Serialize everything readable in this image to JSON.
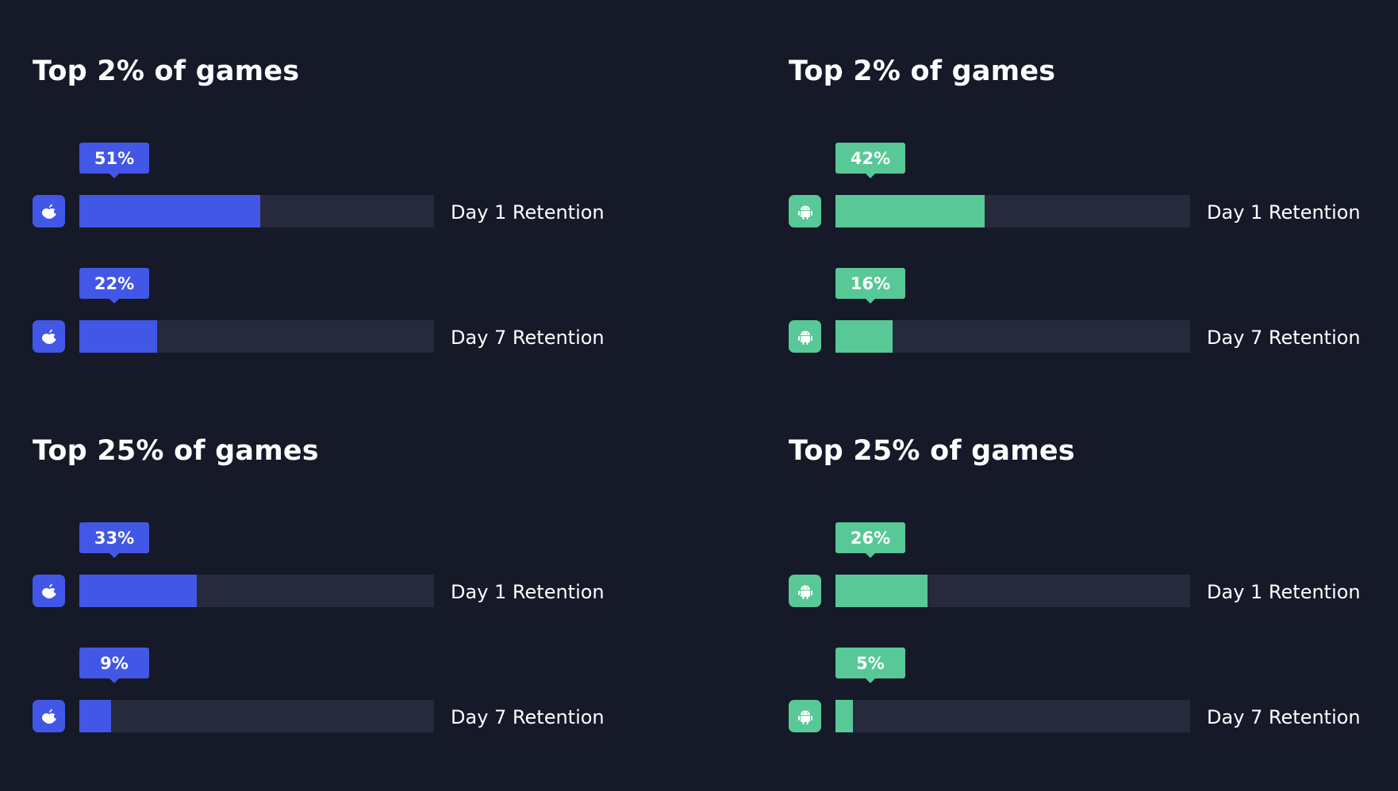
{
  "colors": {
    "background": "#151928",
    "ios": "#4257e6",
    "android": "#58c897",
    "track": "#272a3c"
  },
  "chart_data": [
    {
      "type": "bar",
      "title": "Top 2% of games",
      "platform_icon": "apple-icon",
      "categories": [
        "Day 1 Retention",
        "Day 7 Retention"
      ],
      "values": [
        51,
        22
      ],
      "labels": [
        "51%",
        "22%"
      ],
      "ylim": [
        0,
        100
      ]
    },
    {
      "type": "bar",
      "title": "Top 2% of games",
      "platform_icon": "android-icon",
      "categories": [
        "Day 1 Retention",
        "Day 7 Retention"
      ],
      "values": [
        42,
        16
      ],
      "labels": [
        "42%",
        "16%"
      ],
      "ylim": [
        0,
        100
      ]
    },
    {
      "type": "bar",
      "title": "Top 25% of games",
      "platform_icon": "apple-icon",
      "categories": [
        "Day 1 Retention",
        "Day 7 Retention"
      ],
      "values": [
        33,
        9
      ],
      "labels": [
        "33%",
        "9%"
      ],
      "ylim": [
        0,
        100
      ]
    },
    {
      "type": "bar",
      "title": "Top 25% of games",
      "platform_icon": "android-icon",
      "categories": [
        "Day 1 Retention",
        "Day 7 Retention"
      ],
      "values": [
        26,
        5
      ],
      "labels": [
        "26%",
        "5%"
      ],
      "ylim": [
        0,
        100
      ]
    }
  ]
}
